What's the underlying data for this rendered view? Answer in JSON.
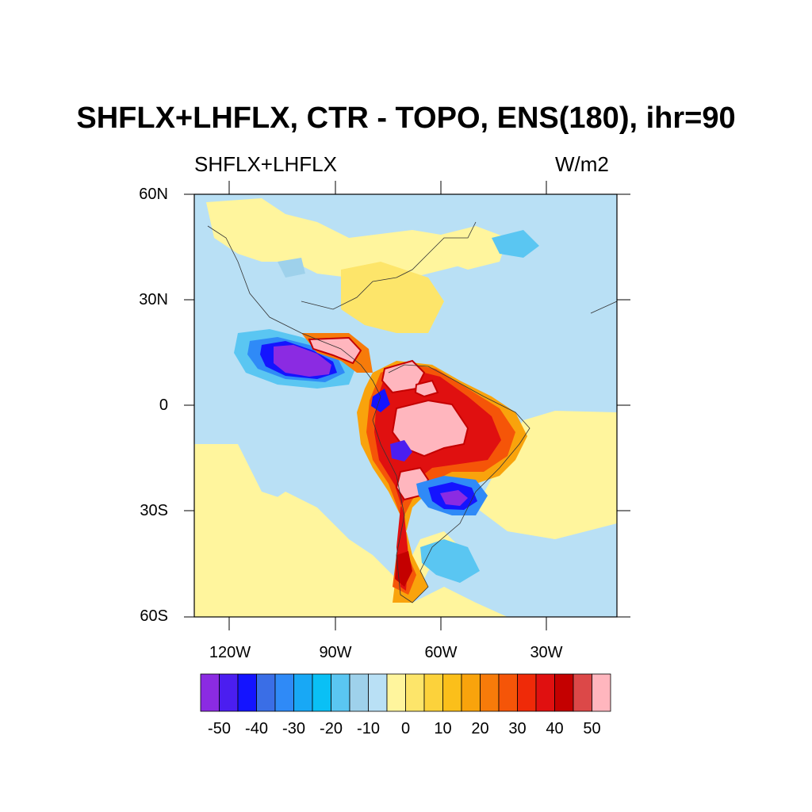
{
  "title": "SHFLX+LHFLX, CTR - TOPO, ENS(180), ihr=90",
  "variable_label": "SHFLX+LHFLX",
  "units_label": "W/m2",
  "map": {
    "projection": "lat-lon",
    "lon_range": [
      -135,
      -12
    ],
    "lat_range": [
      -60,
      60
    ],
    "lat_ticks": [
      {
        "value": 60,
        "label": "60N"
      },
      {
        "value": 30,
        "label": "30N"
      },
      {
        "value": 0,
        "label": "0"
      },
      {
        "value": -30,
        "label": "30S"
      },
      {
        "value": -60,
        "label": "60S"
      }
    ],
    "lon_ticks": [
      {
        "value": -120,
        "label": "120W"
      },
      {
        "value": -90,
        "label": "90W"
      },
      {
        "value": -60,
        "label": "60W"
      },
      {
        "value": -30,
        "label": "30W"
      }
    ],
    "background_level_color": "#fff59d",
    "ocean_neutral_color": "#b9e0f5"
  },
  "colorbar": {
    "labels": [
      "-50",
      "-40",
      "-30",
      "-20",
      "-10",
      "0",
      "10",
      "20",
      "30",
      "40",
      "50"
    ],
    "colors": [
      "#8b2be2",
      "#4b1ef0",
      "#1414ff",
      "#3a6ee6",
      "#2f8af7",
      "#18a8f5",
      "#0ac0f5",
      "#5ac6f2",
      "#9ed1eb",
      "#b9e0f5",
      "#fff59d",
      "#fde56a",
      "#fcd23b",
      "#fbbf1a",
      "#f9a30c",
      "#f77b0a",
      "#f55508",
      "#ef2a08",
      "#e01010",
      "#c40000",
      "#dc4848",
      "#ffb6be"
    ]
  }
}
